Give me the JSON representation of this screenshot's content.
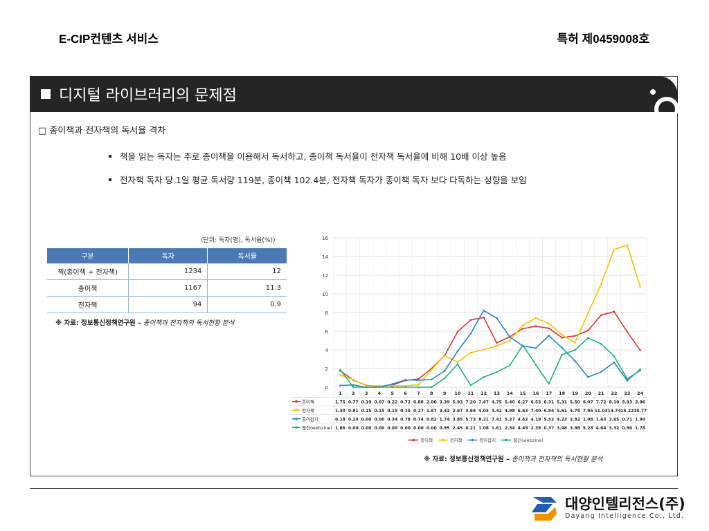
{
  "header": {
    "left": "E-CIP컨텐츠 서비스",
    "right": "특허 제0459008호"
  },
  "banner": {
    "title": "디지털 라이브러리의 문제점"
  },
  "section": {
    "heading": "□ 종이책과 전자책의 독서율 격차",
    "bullets": [
      "책을 읽는 독자는 주로 종이책을 이용해서 독서하고, 종이책 독서율이 전자책 독서율에 비해 10배 이상 높음",
      "전자책 독자 당 1일 평균 독서량 119분, 종이책 102.4분, 전자책 독자가 종이책 독자 보다 다독하는 성향을 보임"
    ]
  },
  "table": {
    "unit_note": "(단위: 독자(명), 독서율(%))",
    "headers": [
      "구분",
      "독자",
      "독서율"
    ],
    "rows": [
      [
        "책(종이책 + 전자책)",
        "1234",
        "12"
      ],
      [
        "종이책",
        "1167",
        "11.3"
      ],
      [
        "전자책",
        "94",
        "0.9"
      ]
    ]
  },
  "source": {
    "prefix": "※ 자료: 정보통신정책연구원 –",
    "title": "종이책과 전자책의 독서현황 분석"
  },
  "chart_data": {
    "type": "line",
    "x": [
      "1",
      "2",
      "3",
      "4",
      "5",
      "6",
      "7",
      "8",
      "9",
      "10",
      "11",
      "12",
      "13",
      "14",
      "15",
      "16",
      "17",
      "18",
      "19",
      "20",
      "21",
      "22",
      "23",
      "24"
    ],
    "ylim": [
      0,
      16
    ],
    "yticks": [
      0,
      2,
      4,
      6,
      8,
      10,
      12,
      14,
      16
    ],
    "grid": true,
    "legend_position": "bottom",
    "series": [
      {
        "name": "종이책",
        "color": "#e03131",
        "values": [
          1.75,
          0.77,
          0.19,
          0.07,
          0.22,
          0.72,
          0.88,
          2.0,
          3.39,
          5.93,
          7.2,
          7.47,
          4.75,
          5.4,
          6.27,
          6.53,
          6.31,
          5.31,
          5.5,
          6.07,
          7.72,
          8.1,
          5.93,
          3.96
        ]
      },
      {
        "name": "전자책",
        "color": "#f2c200",
        "values": [
          1.3,
          0.81,
          0.15,
          0.15,
          0.15,
          0.15,
          0.27,
          1.87,
          3.42,
          2.67,
          3.69,
          4.03,
          4.42,
          4.98,
          6.63,
          7.4,
          6.84,
          5.61,
          4.78,
          7.95,
          11.03,
          14.74,
          15.22,
          10.77
        ]
      },
      {
        "name": "종이잡지",
        "color": "#2e86c1",
        "values": [
          0.18,
          0.24,
          0.0,
          0.0,
          0.34,
          0.78,
          0.74,
          0.82,
          1.74,
          3.85,
          5.73,
          8.21,
          7.41,
          5.37,
          4.42,
          4.19,
          5.52,
          4.23,
          2.82,
          1.08,
          1.63,
          2.65,
          0.71,
          1.9
        ]
      },
      {
        "name": "웹진(webzine)",
        "color": "#1fb27a",
        "values": [
          1.86,
          0.0,
          0.0,
          0.0,
          0.0,
          0.0,
          0.0,
          0.0,
          0.95,
          2.45,
          0.21,
          1.08,
          1.61,
          2.34,
          4.49,
          2.39,
          0.37,
          3.48,
          3.98,
          5.28,
          4.64,
          3.32,
          0.9,
          1.78
        ]
      }
    ],
    "legend_labels": [
      "종이책",
      "전자책",
      "종이잡지",
      "웹진(webzine)"
    ]
  },
  "footer": {
    "company_kr": "대양인텔리전스(주)",
    "company_en": "Dayang Intelligence Co., Ltd.",
    "logo_colors": [
      "#1f5fae",
      "#f39200"
    ]
  }
}
